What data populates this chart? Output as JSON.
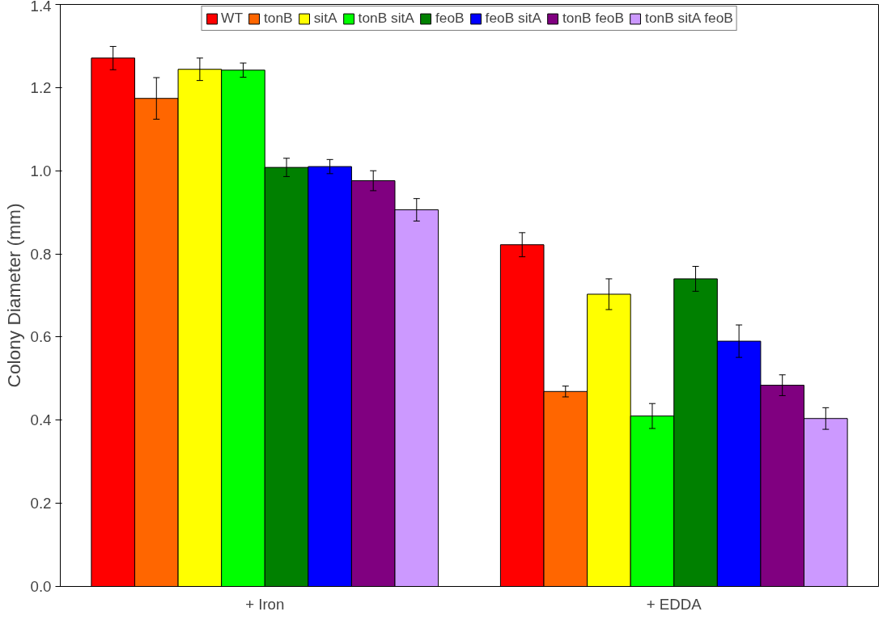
{
  "chart_data": {
    "type": "bar",
    "ylabel": "Colony Diameter (mm)",
    "categories": [
      "+ Iron",
      "+ EDDA"
    ],
    "ylim": [
      0,
      1.4
    ],
    "yticks": [
      {
        "value": 0,
        "label": "0.0"
      },
      0.2,
      0.4,
      0.6,
      0.8,
      {
        "value": 1,
        "label": "1.0"
      },
      1.2,
      1.4
    ],
    "grid": false,
    "legend": "top",
    "tick_labels": "xy",
    "series": [
      {
        "name": "WT",
        "color": "#ff0000",
        "values": [
          1.271,
          0.822
        ],
        "errors": [
          0.028,
          0.029
        ]
      },
      {
        "name": "tonB",
        "color": "#ff6600",
        "values": [
          1.174,
          0.469
        ],
        "errors": [
          0.05,
          0.013
        ]
      },
      {
        "name": "sitA",
        "color": "#ffff00",
        "values": [
          1.244,
          0.703
        ],
        "errors": [
          0.027,
          0.037
        ]
      },
      {
        "name": "tonB sitA",
        "color": "#00ff00",
        "values": [
          1.242,
          0.41
        ],
        "errors": [
          0.017,
          0.03
        ]
      },
      {
        "name": "feoB",
        "color": "#008000",
        "values": [
          1.008,
          0.74
        ],
        "errors": [
          0.022,
          0.03
        ]
      },
      {
        "name": "feoB sitA",
        "color": "#0000ff",
        "values": [
          1.01,
          0.59
        ],
        "errors": [
          0.017,
          0.039
        ]
      },
      {
        "name": "tonB feoB",
        "color": "#800080",
        "values": [
          0.976,
          0.484
        ],
        "errors": [
          0.024,
          0.025
        ]
      },
      {
        "name": "tonB sitA feoB",
        "color": "#cc99ff",
        "values": [
          0.906,
          0.404
        ],
        "errors": [
          0.027,
          0.026
        ]
      }
    ]
  }
}
